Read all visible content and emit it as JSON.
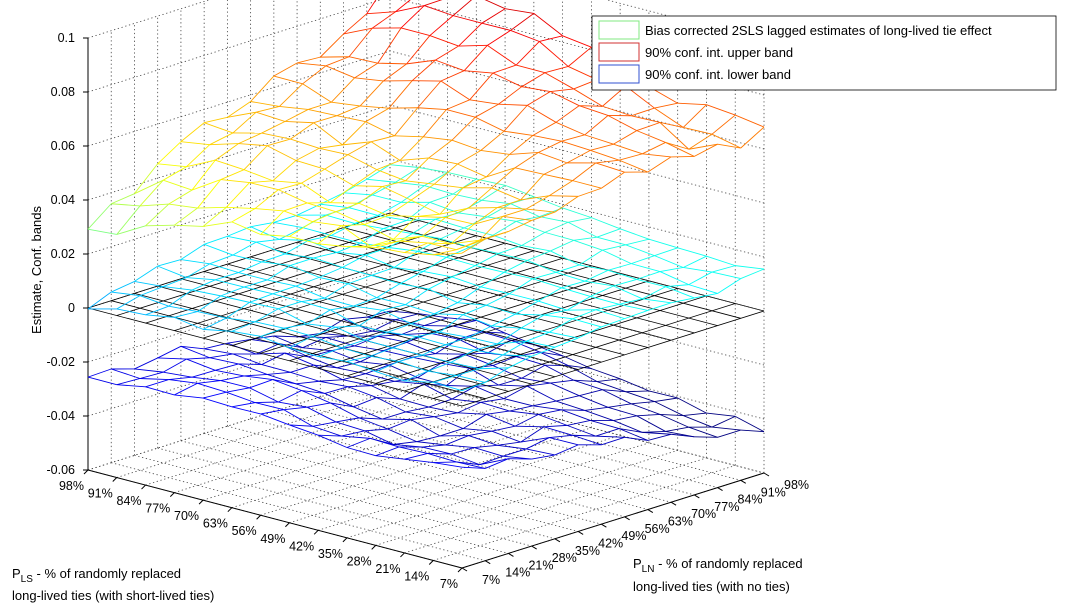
{
  "chart_data": {
    "type": "surface",
    "zlabel": "Estimate, Conf. bands",
    "xlabel_main": "P",
    "xlabel_sub": "LS",
    "xlabel_rest_line1": " - % of randomly replaced",
    "xlabel_line2": "long-lived ties (with short-lived ties)",
    "ylabel_main": "P",
    "ylabel_sub": "LN",
    "ylabel_rest_line1": " - % of randomly replaced",
    "ylabel_line2": "long-lived ties (with no ties)",
    "zlim": [
      -0.06,
      0.1
    ],
    "z_ticks": [
      "-0.06",
      "-0.04",
      "-0.02",
      "0",
      "0.02",
      "0.04",
      "0.06",
      "0.08",
      "0.1"
    ],
    "x_ticks": [
      "98%",
      "91%",
      "84%",
      "77%",
      "70%",
      "63%",
      "56%",
      "49%",
      "42%",
      "35%",
      "28%",
      "21%",
      "14%",
      "7%"
    ],
    "y_ticks": [
      "7%",
      "14%",
      "21%",
      "28%",
      "35%",
      "42%",
      "49%",
      "56%",
      "63%",
      "70%",
      "77%",
      "84%",
      "91%",
      "98%"
    ],
    "grid": true,
    "legend_position": "top-right",
    "legend": [
      "Bias corrected 2SLS lagged estimates of long-lived tie effect",
      "90% conf. int. upper band",
      "90% conf. int. lower band"
    ],
    "legend_colors": [
      "#80e880",
      "#d03030",
      "#3050d0"
    ],
    "series": [
      {
        "name": "Bias corrected 2SLS lagged estimates of long-lived tie effect",
        "corners": {
          "x98_y7": 0.0,
          "x7_y7": 0.008,
          "x98_y98": 0.018,
          "x7_y98": 0.017
        },
        "typical_range": [
          0.0,
          0.025
        ]
      },
      {
        "name": "90% conf. int. upper band",
        "corners": {
          "x98_y7": 0.027,
          "x7_y7": 0.06,
          "x98_y98": 0.085,
          "x7_y98": 0.073
        },
        "typical_range": [
          0.027,
          0.1
        ]
      },
      {
        "name": "90% conf. int. lower band",
        "corners": {
          "x98_y7": -0.027,
          "x7_y7": -0.022,
          "x98_y98": -0.035,
          "x7_y98": -0.04
        },
        "typical_range": [
          -0.04,
          -0.02
        ]
      }
    ],
    "zero_plane": 0.0
  }
}
